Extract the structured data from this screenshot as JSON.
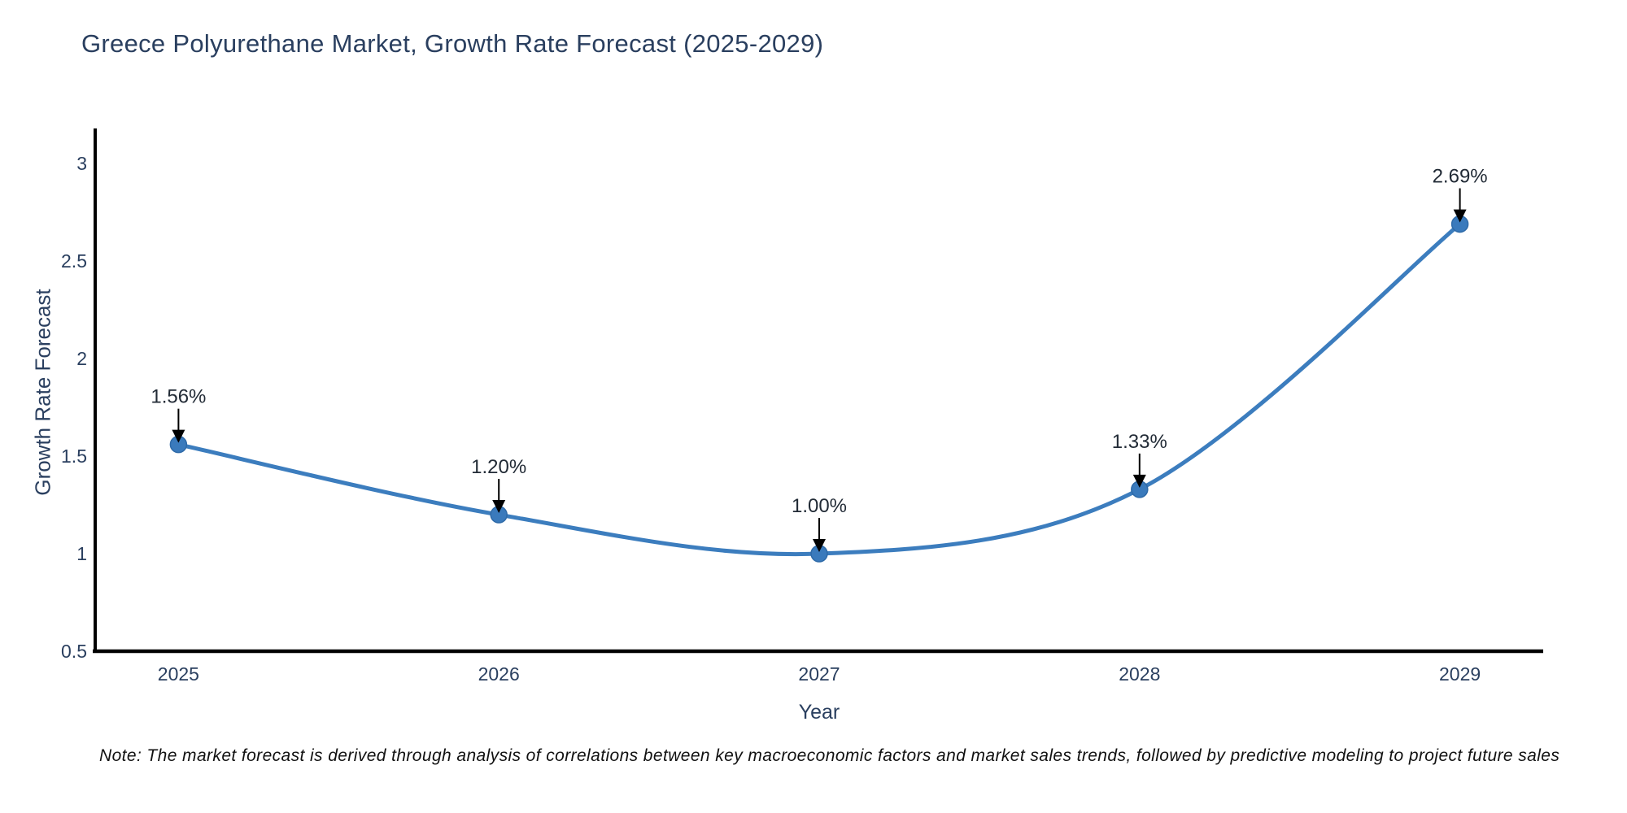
{
  "page": {
    "note": "Note: The market forecast is derived through analysis of correlations between key macroeconomic factors and market sales trends, followed by predictive modeling to project future sales"
  },
  "chart_data": {
    "type": "line",
    "title": "Greece Polyurethane Market, Growth Rate Forecast (2025-2029)",
    "xlabel": "Year",
    "ylabel": "Growth Rate Forecast",
    "x": [
      2025,
      2026,
      2027,
      2028,
      2029
    ],
    "series": [
      {
        "name": "Growth Rate Forecast",
        "values": [
          1.56,
          1.2,
          1.0,
          1.33,
          2.69
        ],
        "point_labels": [
          "1.56%",
          "1.20%",
          "1.00%",
          "1.33%",
          "2.69%"
        ]
      }
    ],
    "xtick_labels": [
      "2025",
      "2026",
      "2027",
      "2028",
      "2029"
    ],
    "ytick_labels": [
      "0.5",
      "1",
      "1.5",
      "2",
      "2.5",
      "3"
    ],
    "ytick_values": [
      0.5,
      1,
      1.5,
      2,
      2.5,
      3
    ],
    "xlim": [
      2024.74,
      2029.26
    ],
    "ylim": [
      0.5,
      3.18
    ],
    "grid": false,
    "legend": "none",
    "curve": "spline",
    "colors": {
      "line": "#3c7dbe",
      "marker": "#3a7abc",
      "marker_edge": "#2e6aa8",
      "axis": "#000000",
      "title_text": "#2a3f5f",
      "tick_text": "#2a3f5f",
      "annotation_text": "#222b36",
      "annotation_arrow": "#000000",
      "note_text": "#111111",
      "background": "#ffffff"
    }
  }
}
